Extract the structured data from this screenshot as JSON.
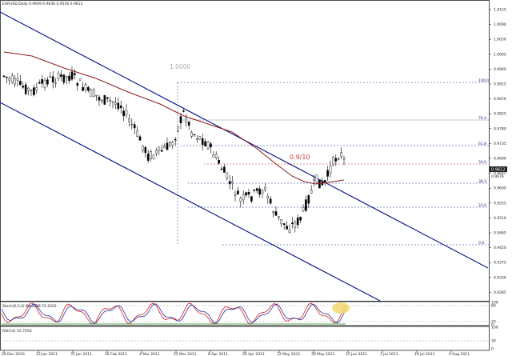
{
  "window": {
    "title": "EURUSD,Daily  0.9609 0.9636 0.9556 0.9612"
  },
  "colors": {
    "background": "#ffffff",
    "channel_line": "#0a1a8a",
    "moving_average": "#8b1a1a",
    "candles": "#000000",
    "fib_levels": "#1f2a8a",
    "fib_highlight": "#b03030",
    "stoch_main": "#d02020",
    "stoch_signal": "#2030a0",
    "rsi_line": "#1a8a1a",
    "highlight_marker": "#f5d76e"
  },
  "main_chart": {
    "fib_top_label": "1.0000",
    "fib_highlight_label": "0.9/10",
    "fib_small_labels": [
      "100.0",
      "76.4",
      "61.8",
      "50.0",
      "38.2",
      "23.6",
      "0.0"
    ],
    "price_axis": [
      "1.0155",
      "1.0090",
      "1.0050",
      "1.0005",
      "0.9960",
      "0.9915",
      "0.9870",
      "0.9825",
      "0.9780",
      "0.9735",
      "0.9690",
      "0.9645",
      "0.9600",
      "0.9555",
      "0.9510",
      "0.9465",
      "0.9420",
      "0.9375",
      "0.9330",
      "0.9285"
    ],
    "current_price": "0.9612",
    "current_price_2": "0.9676"
  },
  "stochastic": {
    "label": "Stoch(5,3,3) 88.8889 72.2222",
    "axis": [
      "100",
      "80",
      "20",
      "0"
    ]
  },
  "rsi": {
    "label": "RSI(14) 55.7050",
    "axis": [
      "100",
      "30",
      "0"
    ]
  },
  "time_axis": [
    "20 Dec 2010",
    "13 Jan 2011",
    "31 Jan 2011",
    "16 Feb 2011",
    "4 Mar 2011",
    "22 Mar 2011",
    "8 Apr 2011",
    "26 Apr 2011",
    "12 May 2011",
    "30 May 2011",
    "15 Jun 2011",
    "1 Jul 2011",
    "19 Jul 2011",
    "4 Aug 2011",
    "22 Aug 2011"
  ]
}
